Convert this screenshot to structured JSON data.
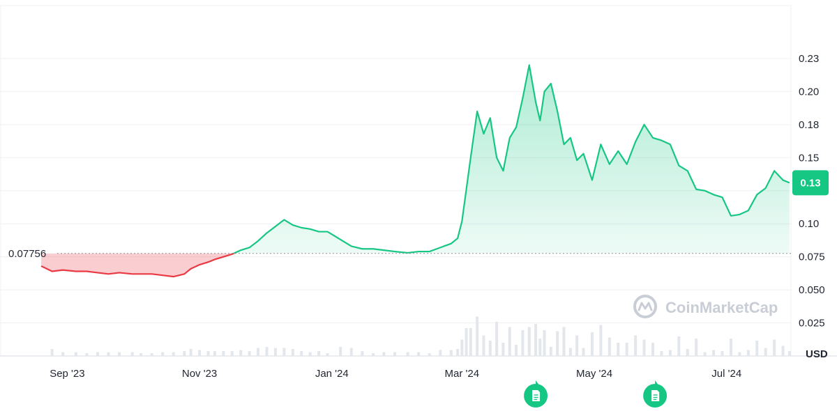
{
  "colors": {
    "up": "#16c784",
    "down": "#ea3943",
    "grid": "#eef0f3",
    "volume": "#e3e6ea",
    "text": "#1f2430",
    "watermark": "#c9cdd6"
  },
  "icons": [
    "coinmarketcap-logo-icon",
    "document-icon"
  ],
  "watermark": "CoinMarketCap",
  "chart_data": {
    "type": "area",
    "title": "",
    "currency_label": "USD",
    "baseline_value": 0.07756,
    "baseline_label": "0.07756",
    "current_price": 0.13,
    "current_price_label": "0.13",
    "ylim": [
      0,
      0.265
    ],
    "y_ticks": [
      {
        "value": 0.025,
        "label": "0.025"
      },
      {
        "value": 0.05,
        "label": "0.050"
      },
      {
        "value": 0.075,
        "label": "0.075"
      },
      {
        "value": 0.1,
        "label": "0.10"
      },
      {
        "value": 0.125,
        "label": "0.13"
      },
      {
        "value": 0.15,
        "label": "0.15"
      },
      {
        "value": 0.175,
        "label": "0.18"
      },
      {
        "value": 0.2,
        "label": "0.20"
      },
      {
        "value": 0.225,
        "label": "0.23"
      }
    ],
    "xlim": [
      "2023-08-01",
      "2024-07-31"
    ],
    "x_ticks": [
      {
        "date": "2023-09-01",
        "label": "Sep '23"
      },
      {
        "date": "2023-11-01",
        "label": "Nov '23"
      },
      {
        "date": "2024-01-01",
        "label": "Jan '24"
      },
      {
        "date": "2024-03-01",
        "label": "Mar '24"
      },
      {
        "date": "2024-05-01",
        "label": "May '24"
      },
      {
        "date": "2024-07-01",
        "label": "Jul '24"
      }
    ],
    "news_markers": [
      {
        "date": "2024-04-04"
      },
      {
        "date": "2024-05-29"
      }
    ],
    "series": [
      {
        "x": [
          "2023-08-20",
          "2023-08-25",
          "2023-08-30",
          "2023-09-05",
          "2023-09-10",
          "2023-09-15",
          "2023-09-20",
          "2023-09-25",
          "2023-10-01",
          "2023-10-05",
          "2023-10-10",
          "2023-10-15",
          "2023-10-20",
          "2023-10-25",
          "2023-10-28",
          "2023-11-01",
          "2023-11-05",
          "2023-11-08",
          "2023-11-12",
          "2023-11-16",
          "2023-11-20",
          "2023-11-24",
          "2023-11-28",
          "2023-12-02",
          "2023-12-06",
          "2023-12-10",
          "2023-12-14",
          "2023-12-18",
          "2023-12-22",
          "2023-12-26",
          "2023-12-30",
          "2024-01-05",
          "2024-01-10",
          "2024-01-15",
          "2024-01-20",
          "2024-01-25",
          "2024-01-30",
          "2024-02-05",
          "2024-02-10",
          "2024-02-15",
          "2024-02-20",
          "2024-02-25",
          "2024-02-28",
          "2024-03-01",
          "2024-03-03",
          "2024-03-05",
          "2024-03-08",
          "2024-03-11",
          "2024-03-14",
          "2024-03-17",
          "2024-03-20",
          "2024-03-23",
          "2024-03-26",
          "2024-03-29",
          "2024-04-01",
          "2024-04-04",
          "2024-04-06",
          "2024-04-08",
          "2024-04-11",
          "2024-04-14",
          "2024-04-17",
          "2024-04-20",
          "2024-04-23",
          "2024-04-26",
          "2024-04-30",
          "2024-05-04",
          "2024-05-08",
          "2024-05-12",
          "2024-05-16",
          "2024-05-20",
          "2024-05-24",
          "2024-05-28",
          "2024-06-01",
          "2024-06-05",
          "2024-06-09",
          "2024-06-13",
          "2024-06-17",
          "2024-06-21",
          "2024-06-25",
          "2024-06-29",
          "2024-07-03",
          "2024-07-07",
          "2024-07-11",
          "2024-07-15",
          "2024-07-19",
          "2024-07-23",
          "2024-07-27",
          "2024-07-30"
        ],
        "values": [
          0.068,
          0.064,
          0.065,
          0.064,
          0.064,
          0.063,
          0.062,
          0.063,
          0.062,
          0.062,
          0.062,
          0.061,
          0.06,
          0.062,
          0.066,
          0.069,
          0.071,
          0.073,
          0.075,
          0.077,
          0.08,
          0.082,
          0.087,
          0.093,
          0.098,
          0.103,
          0.099,
          0.097,
          0.096,
          0.094,
          0.094,
          0.088,
          0.083,
          0.081,
          0.081,
          0.08,
          0.079,
          0.078,
          0.079,
          0.079,
          0.082,
          0.085,
          0.089,
          0.102,
          0.126,
          0.15,
          0.185,
          0.168,
          0.18,
          0.15,
          0.14,
          0.165,
          0.173,
          0.195,
          0.22,
          0.192,
          0.178,
          0.2,
          0.206,
          0.185,
          0.16,
          0.165,
          0.148,
          0.153,
          0.133,
          0.16,
          0.145,
          0.155,
          0.145,
          0.162,
          0.175,
          0.165,
          0.163,
          0.16,
          0.144,
          0.14,
          0.126,
          0.125,
          0.122,
          0.12,
          0.106,
          0.107,
          0.11,
          0.122,
          0.127,
          0.14,
          0.133,
          0.131
        ]
      }
    ]
  }
}
